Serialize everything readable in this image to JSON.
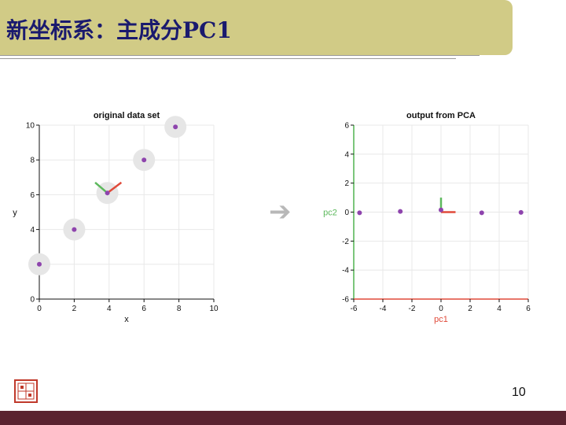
{
  "slide": {
    "title": "新坐标系：主成分PC1",
    "page_number": "10"
  },
  "colors": {
    "title_bar": "#d1cb86",
    "title_text": "#1a1a6e",
    "point": "#8e44ad",
    "halo": "#e6e6e6",
    "green_axis": "#5cb85c",
    "red_axis": "#e04a3a",
    "footer": "#5a2330"
  },
  "icons": {
    "arrow": "right-arrow-icon",
    "seal": "seal-logo-icon"
  },
  "chart_data": [
    {
      "type": "scatter",
      "title": "original data set",
      "xlabel": "x",
      "ylabel": "y",
      "xlim": [
        0,
        10
      ],
      "ylim": [
        0,
        10
      ],
      "xticks": [
        0,
        2,
        4,
        6,
        8,
        10
      ],
      "yticks": [
        0,
        2,
        4,
        6,
        8,
        10
      ],
      "grid": true,
      "points": [
        {
          "x": 0,
          "y": 2
        },
        {
          "x": 2,
          "y": 4
        },
        {
          "x": 3.9,
          "y": 6.1
        },
        {
          "x": 6,
          "y": 8
        },
        {
          "x": 7.8,
          "y": 9.9
        }
      ],
      "halos": true,
      "principal_axes": {
        "center": {
          "x": 3.9,
          "y": 6.1
        },
        "green_end": {
          "x": 3.2,
          "y": 6.7
        },
        "red_end": {
          "x": 4.7,
          "y": 6.7
        }
      }
    },
    {
      "type": "scatter",
      "title": "output from PCA",
      "xlabel": "pc1",
      "ylabel": "pc2",
      "xlim": [
        -6,
        6
      ],
      "ylim": [
        -6,
        6
      ],
      "xticks": [
        -6,
        -4,
        -2,
        0,
        2,
        4,
        6
      ],
      "yticks": [
        -6,
        -4,
        -2,
        0,
        2,
        4,
        6
      ],
      "grid": true,
      "points": [
        {
          "x": -5.6,
          "y": -0.05
        },
        {
          "x": -2.8,
          "y": 0.05
        },
        {
          "x": 0,
          "y": 0.15
        },
        {
          "x": 2.8,
          "y": -0.05
        },
        {
          "x": 5.5,
          "y": -0.02
        }
      ],
      "halos": false,
      "principal_axes": {
        "center": {
          "x": 0,
          "y": 0
        },
        "green_end": {
          "x": 0,
          "y": 1
        },
        "red_end": {
          "x": 1,
          "y": 0
        }
      }
    }
  ]
}
